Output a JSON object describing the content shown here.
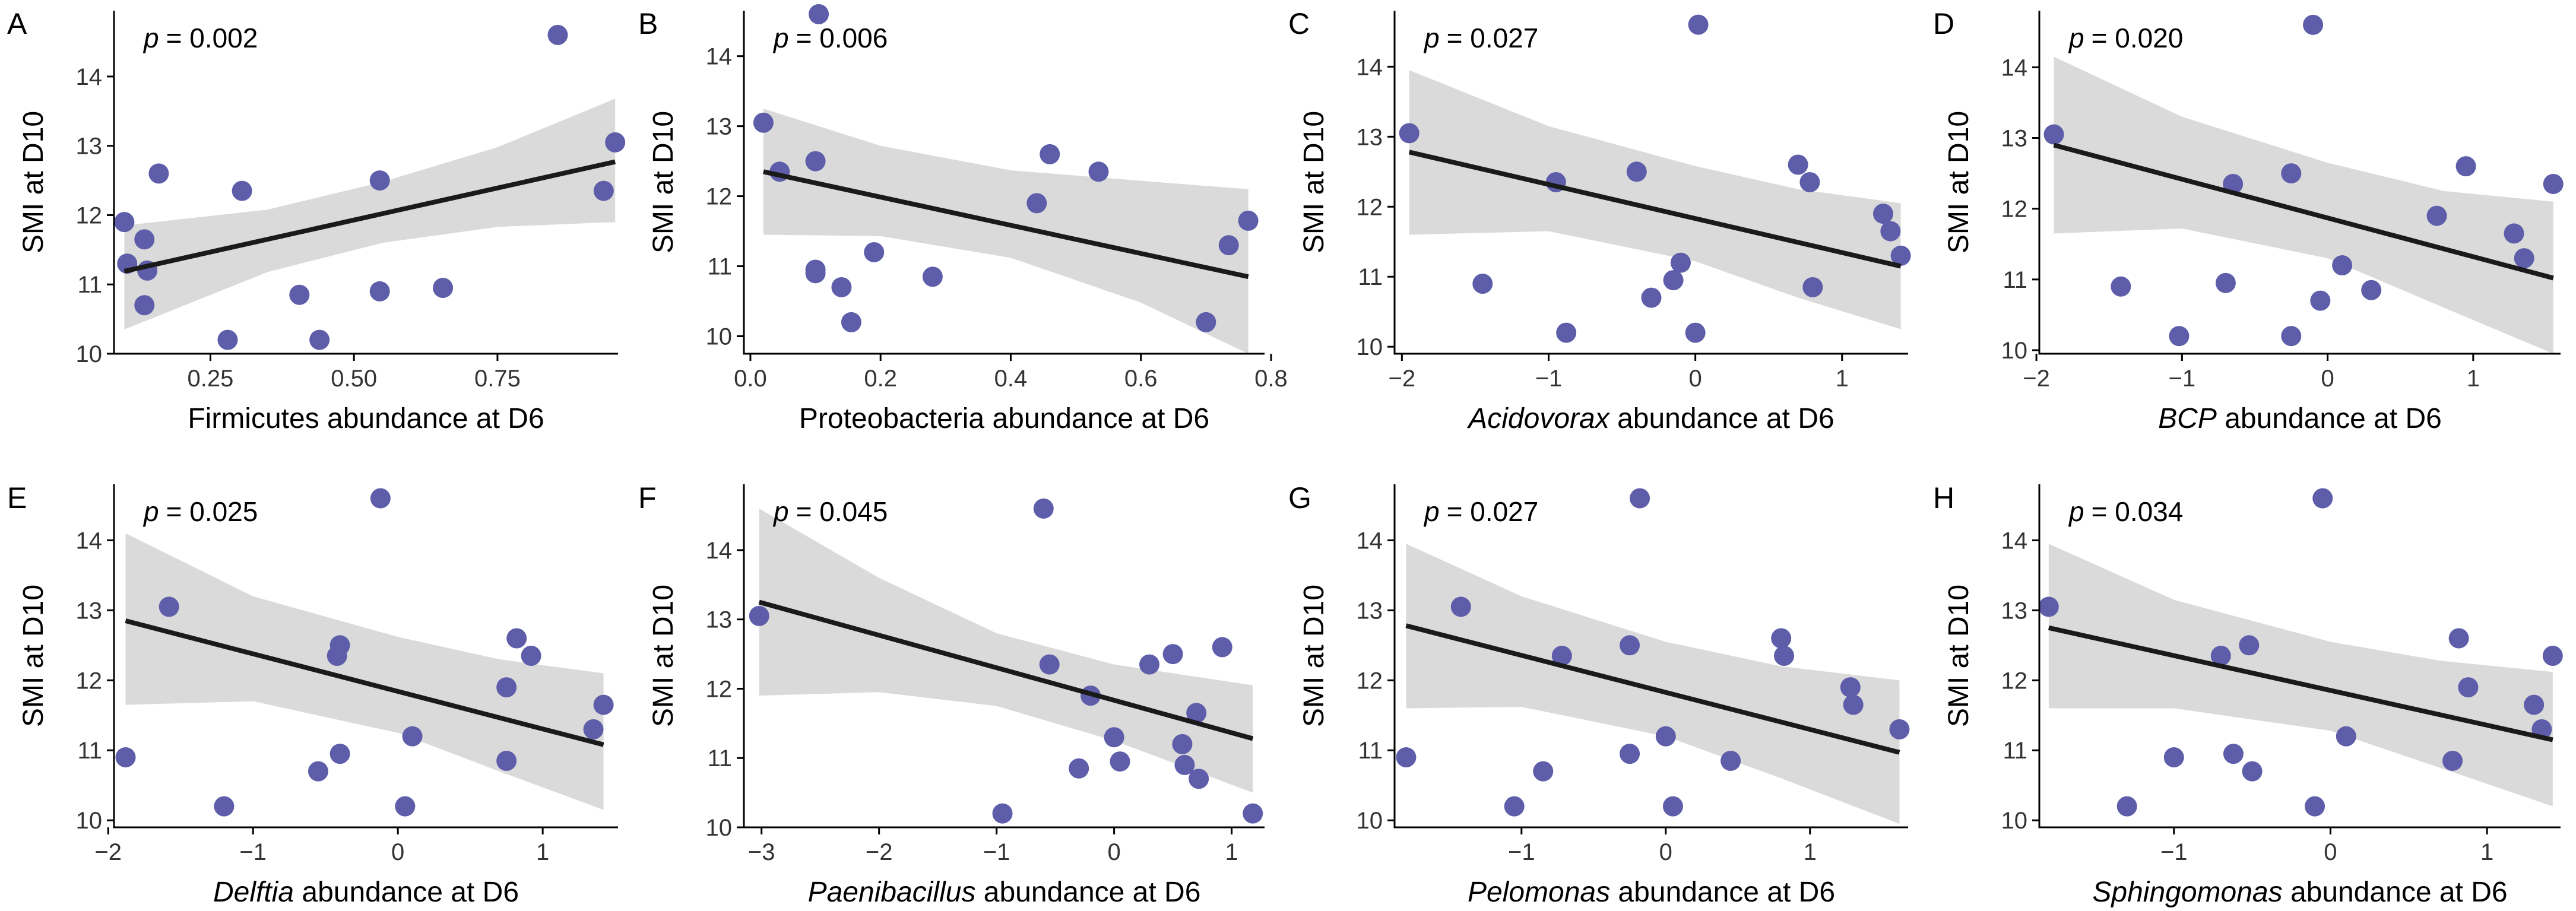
{
  "figure": {
    "y_axis_label": "SMI at D10",
    "colors": {
      "point": "#5D5DAA",
      "band": "#DADADA",
      "line": "#1A1A1A",
      "axis": "#000000",
      "text": "#000000",
      "tick_text": "#333333"
    }
  },
  "chart_data": [
    {
      "id": "A",
      "letter": "A",
      "type": "scatter",
      "p_label": "p",
      "p_value": "= 0.002",
      "xlabel_italic": "",
      "xlabel_rest": "Firmicutes abundance at D6",
      "xlim": [
        0.082,
        0.96
      ],
      "ylim": [
        10.0,
        14.95
      ],
      "xticks": [
        0.25,
        0.5,
        0.75
      ],
      "xtick_labels": [
        "0.25",
        "0.50",
        "0.75"
      ],
      "yticks": [
        10,
        11,
        12,
        13,
        14
      ],
      "ytick_labels": [
        "10",
        "11",
        "12",
        "13",
        "14"
      ],
      "points": [
        [
          0.1,
          11.9
        ],
        [
          0.105,
          11.3
        ],
        [
          0.135,
          11.65
        ],
        [
          0.14,
          11.2
        ],
        [
          0.135,
          10.7
        ],
        [
          0.16,
          12.6
        ],
        [
          0.28,
          10.2
        ],
        [
          0.305,
          12.35
        ],
        [
          0.405,
          10.85
        ],
        [
          0.44,
          10.2
        ],
        [
          0.545,
          12.5
        ],
        [
          0.545,
          10.9
        ],
        [
          0.655,
          10.95
        ],
        [
          0.855,
          14.6
        ],
        [
          0.935,
          12.35
        ],
        [
          0.955,
          13.05
        ]
      ],
      "fit": {
        "x": [
          0.1,
          0.955
        ],
        "y": [
          11.19,
          12.77
        ]
      },
      "band": {
        "upper": [
          [
            0.1,
            11.85
          ],
          [
            0.35,
            12.08
          ],
          [
            0.55,
            12.48
          ],
          [
            0.75,
            12.98
          ],
          [
            0.955,
            13.68
          ]
        ],
        "lower": [
          [
            0.1,
            10.35
          ],
          [
            0.35,
            11.18
          ],
          [
            0.55,
            11.6
          ],
          [
            0.75,
            11.83
          ],
          [
            0.955,
            11.9
          ]
        ]
      }
    },
    {
      "id": "B",
      "letter": "B",
      "type": "scatter",
      "p_label": "p",
      "p_value": "= 0.006",
      "xlabel_italic": "",
      "xlabel_rest": "Proteobacteria abundance at D6",
      "xlim": [
        -0.01,
        0.79
      ],
      "ylim": [
        9.75,
        14.65
      ],
      "xticks": [
        0.0,
        0.2,
        0.4,
        0.6,
        0.8
      ],
      "xtick_labels": [
        "0.0",
        "0.2",
        "0.4",
        "0.6",
        "0.8"
      ],
      "yticks": [
        10,
        11,
        12,
        13,
        14
      ],
      "ytick_labels": [
        "10",
        "11",
        "12",
        "13",
        "14"
      ],
      "points": [
        [
          0.02,
          13.05
        ],
        [
          0.045,
          12.35
        ],
        [
          0.1,
          12.5
        ],
        [
          0.1,
          10.95
        ],
        [
          0.1,
          10.9
        ],
        [
          0.105,
          14.6
        ],
        [
          0.14,
          10.7
        ],
        [
          0.155,
          10.2
        ],
        [
          0.19,
          11.2
        ],
        [
          0.28,
          10.85
        ],
        [
          0.44,
          11.9
        ],
        [
          0.46,
          12.6
        ],
        [
          0.535,
          12.35
        ],
        [
          0.7,
          10.2
        ],
        [
          0.735,
          11.3
        ],
        [
          0.765,
          11.65
        ]
      ],
      "fit": {
        "x": [
          0.02,
          0.765
        ],
        "y": [
          12.35,
          10.85
        ]
      },
      "band": {
        "upper": [
          [
            0.02,
            13.25
          ],
          [
            0.2,
            12.72
          ],
          [
            0.4,
            12.37
          ],
          [
            0.6,
            12.22
          ],
          [
            0.765,
            12.1
          ]
        ],
        "lower": [
          [
            0.02,
            11.45
          ],
          [
            0.2,
            11.43
          ],
          [
            0.4,
            11.12
          ],
          [
            0.6,
            10.48
          ],
          [
            0.765,
            9.75
          ]
        ]
      }
    },
    {
      "id": "C",
      "letter": "C",
      "type": "scatter",
      "p_label": "p",
      "p_value": "= 0.027",
      "xlabel_italic": "Acidovorax",
      "xlabel_rest": " abundance at D6",
      "xlim": [
        -2.05,
        1.45
      ],
      "ylim": [
        9.9,
        14.8
      ],
      "xticks": [
        -2,
        -1,
        0,
        1
      ],
      "xtick_labels": [
        "−2",
        "−1",
        "0",
        "1"
      ],
      "yticks": [
        10,
        11,
        12,
        13,
        14
      ],
      "ytick_labels": [
        "10",
        "11",
        "12",
        "13",
        "14"
      ],
      "points": [
        [
          -1.95,
          13.05
        ],
        [
          -1.45,
          10.9
        ],
        [
          -0.95,
          12.35
        ],
        [
          -0.88,
          10.2
        ],
        [
          -0.4,
          12.5
        ],
        [
          -0.3,
          10.7
        ],
        [
          -0.15,
          10.95
        ],
        [
          -0.1,
          11.2
        ],
        [
          0.0,
          10.2
        ],
        [
          0.02,
          14.6
        ],
        [
          0.7,
          12.6
        ],
        [
          0.78,
          12.35
        ],
        [
          0.8,
          10.85
        ],
        [
          1.28,
          11.9
        ],
        [
          1.33,
          11.65
        ],
        [
          1.4,
          11.3
        ]
      ],
      "fit": {
        "x": [
          -1.95,
          1.4
        ],
        "y": [
          12.78,
          11.15
        ]
      },
      "band": {
        "upper": [
          [
            -1.95,
            13.95
          ],
          [
            -1.0,
            13.15
          ],
          [
            0.0,
            12.58
          ],
          [
            0.7,
            12.25
          ],
          [
            1.4,
            12.05
          ]
        ],
        "lower": [
          [
            -1.95,
            11.6
          ],
          [
            -1.0,
            11.65
          ],
          [
            0.0,
            11.22
          ],
          [
            0.7,
            10.7
          ],
          [
            1.4,
            10.25
          ]
        ]
      }
    },
    {
      "id": "D",
      "letter": "D",
      "type": "scatter",
      "p_label": "p",
      "p_value": "= 0.020",
      "xlabel_italic": "BCP",
      "xlabel_rest": " abundance at D6",
      "xlim": [
        -1.98,
        1.6
      ],
      "ylim": [
        9.95,
        14.8
      ],
      "xticks": [
        -2,
        -1,
        0,
        1
      ],
      "xtick_labels": [
        "−2",
        "−1",
        "0",
        "1"
      ],
      "yticks": [
        10,
        11,
        12,
        13,
        14
      ],
      "ytick_labels": [
        "10",
        "11",
        "12",
        "13",
        "14"
      ],
      "points": [
        [
          -1.88,
          13.05
        ],
        [
          -1.42,
          10.9
        ],
        [
          -1.02,
          10.2
        ],
        [
          -0.7,
          10.95
        ],
        [
          -0.65,
          12.35
        ],
        [
          -0.25,
          12.5
        ],
        [
          -0.25,
          10.2
        ],
        [
          -0.1,
          14.6
        ],
        [
          -0.05,
          10.7
        ],
        [
          0.1,
          11.2
        ],
        [
          0.3,
          10.85
        ],
        [
          0.75,
          11.9
        ],
        [
          0.95,
          12.6
        ],
        [
          1.28,
          11.65
        ],
        [
          1.35,
          11.3
        ],
        [
          1.55,
          12.35
        ]
      ],
      "fit": {
        "x": [
          -1.88,
          1.55
        ],
        "y": [
          12.9,
          11.02
        ]
      },
      "band": {
        "upper": [
          [
            -1.88,
            14.15
          ],
          [
            -1.0,
            13.3
          ],
          [
            0.0,
            12.65
          ],
          [
            0.8,
            12.25
          ],
          [
            1.55,
            12.1
          ]
        ],
        "lower": [
          [
            -1.88,
            11.65
          ],
          [
            -1.0,
            11.72
          ],
          [
            0.0,
            11.3
          ],
          [
            0.8,
            10.6
          ],
          [
            1.55,
            9.95
          ]
        ]
      }
    },
    {
      "id": "E",
      "letter": "E",
      "type": "scatter",
      "p_label": "p",
      "p_value": "= 0.025",
      "xlabel_italic": "Delftia",
      "xlabel_rest": " abundance at D6",
      "xlim": [
        -1.96,
        1.52
      ],
      "ylim": [
        9.9,
        14.8
      ],
      "xticks": [
        -2,
        -1,
        0,
        1
      ],
      "xtick_labels": [
        "−2",
        "−1",
        "0",
        "1"
      ],
      "yticks": [
        10,
        11,
        12,
        13,
        14
      ],
      "ytick_labels": [
        "10",
        "11",
        "12",
        "13",
        "14"
      ],
      "points": [
        [
          -1.88,
          10.9
        ],
        [
          -1.58,
          13.05
        ],
        [
          -1.2,
          10.2
        ],
        [
          -0.55,
          10.7
        ],
        [
          -0.42,
          12.35
        ],
        [
          -0.4,
          12.5
        ],
        [
          -0.4,
          10.95
        ],
        [
          -0.12,
          14.6
        ],
        [
          0.05,
          10.2
        ],
        [
          0.1,
          11.2
        ],
        [
          0.75,
          11.9
        ],
        [
          0.75,
          10.85
        ],
        [
          0.82,
          12.6
        ],
        [
          0.92,
          12.35
        ],
        [
          1.35,
          11.3
        ],
        [
          1.42,
          11.65
        ]
      ],
      "fit": {
        "x": [
          -1.88,
          1.42
        ],
        "y": [
          12.85,
          11.08
        ]
      },
      "band": {
        "upper": [
          [
            -1.88,
            14.1
          ],
          [
            -1.0,
            13.2
          ],
          [
            0.0,
            12.62
          ],
          [
            0.7,
            12.3
          ],
          [
            1.42,
            12.1
          ]
        ],
        "lower": [
          [
            -1.88,
            11.65
          ],
          [
            -1.0,
            11.7
          ],
          [
            0.0,
            11.25
          ],
          [
            0.7,
            10.7
          ],
          [
            1.42,
            10.15
          ]
        ]
      }
    },
    {
      "id": "F",
      "letter": "F",
      "type": "scatter",
      "p_label": "p",
      "p_value": "= 0.045",
      "xlabel_italic": "Paenibacillus",
      "xlabel_rest": " abundance at D6",
      "xlim": [
        -3.15,
        1.28
      ],
      "ylim": [
        10.0,
        14.95
      ],
      "xticks": [
        -3,
        -2,
        -1,
        0,
        1
      ],
      "xtick_labels": [
        "−3",
        "−2",
        "−1",
        "0",
        "1"
      ],
      "yticks": [
        10,
        11,
        12,
        13,
        14
      ],
      "ytick_labels": [
        "10",
        "11",
        "12",
        "13",
        "14"
      ],
      "points": [
        [
          -3.02,
          13.05
        ],
        [
          -0.95,
          10.2
        ],
        [
          -0.6,
          14.6
        ],
        [
          -0.55,
          12.35
        ],
        [
          -0.3,
          10.85
        ],
        [
          -0.2,
          11.9
        ],
        [
          0.0,
          11.3
        ],
        [
          0.05,
          10.95
        ],
        [
          0.3,
          12.35
        ],
        [
          0.5,
          12.5
        ],
        [
          0.58,
          11.2
        ],
        [
          0.6,
          10.9
        ],
        [
          0.7,
          11.65
        ],
        [
          0.72,
          10.7
        ],
        [
          0.92,
          12.6
        ],
        [
          1.18,
          10.2
        ]
      ],
      "fit": {
        "x": [
          -3.02,
          1.18
        ],
        "y": [
          13.25,
          11.28
        ]
      },
      "band": {
        "upper": [
          [
            -3.02,
            14.6
          ],
          [
            -2.0,
            13.6
          ],
          [
            -1.0,
            12.8
          ],
          [
            0.0,
            12.35
          ],
          [
            1.18,
            12.05
          ]
        ],
        "lower": [
          [
            -3.02,
            11.9
          ],
          [
            -2.0,
            11.95
          ],
          [
            -1.0,
            11.75
          ],
          [
            0.0,
            11.25
          ],
          [
            1.18,
            10.5
          ]
        ]
      }
    },
    {
      "id": "G",
      "letter": "G",
      "type": "scatter",
      "p_label": "p",
      "p_value": "= 0.027",
      "xlabel_italic": "Pelomonas",
      "xlabel_rest": " abundance at D6",
      "xlim": [
        -1.88,
        1.68
      ],
      "ylim": [
        9.9,
        14.8
      ],
      "xticks": [
        -1,
        0,
        1
      ],
      "xtick_labels": [
        "−1",
        "0",
        "1"
      ],
      "yticks": [
        10,
        11,
        12,
        13,
        14
      ],
      "ytick_labels": [
        "10",
        "11",
        "12",
        "13",
        "14"
      ],
      "points": [
        [
          -1.8,
          10.9
        ],
        [
          -1.42,
          13.05
        ],
        [
          -1.05,
          10.2
        ],
        [
          -0.85,
          10.7
        ],
        [
          -0.72,
          12.35
        ],
        [
          -0.25,
          12.5
        ],
        [
          -0.25,
          10.95
        ],
        [
          -0.18,
          14.6
        ],
        [
          0.0,
          11.2
        ],
        [
          0.05,
          10.2
        ],
        [
          0.45,
          10.85
        ],
        [
          0.8,
          12.6
        ],
        [
          0.82,
          12.35
        ],
        [
          1.28,
          11.9
        ],
        [
          1.3,
          11.65
        ],
        [
          1.62,
          11.3
        ]
      ],
      "fit": {
        "x": [
          -1.8,
          1.62
        ],
        "y": [
          12.78,
          10.97
        ]
      },
      "band": {
        "upper": [
          [
            -1.8,
            13.95
          ],
          [
            -1.0,
            13.2
          ],
          [
            0.0,
            12.55
          ],
          [
            0.8,
            12.2
          ],
          [
            1.62,
            12.0
          ]
        ],
        "lower": [
          [
            -1.8,
            11.6
          ],
          [
            -1.0,
            11.62
          ],
          [
            0.0,
            11.2
          ],
          [
            0.8,
            10.6
          ],
          [
            1.62,
            9.95
          ]
        ]
      }
    },
    {
      "id": "H",
      "letter": "H",
      "type": "scatter",
      "p_label": "p",
      "p_value": "= 0.034",
      "xlabel_italic": "Sphingomonas",
      "xlabel_rest": " abundance at D6",
      "xlim": [
        -1.86,
        1.47
      ],
      "ylim": [
        9.9,
        14.8
      ],
      "xticks": [
        -1,
        0,
        1
      ],
      "xtick_labels": [
        "−1",
        "0",
        "1"
      ],
      "yticks": [
        10,
        11,
        12,
        13,
        14
      ],
      "ytick_labels": [
        "10",
        "11",
        "12",
        "13",
        "14"
      ],
      "points": [
        [
          -1.8,
          13.05
        ],
        [
          -1.3,
          10.2
        ],
        [
          -1.0,
          10.9
        ],
        [
          -0.7,
          12.35
        ],
        [
          -0.62,
          10.95
        ],
        [
          -0.52,
          12.5
        ],
        [
          -0.5,
          10.7
        ],
        [
          -0.1,
          10.2
        ],
        [
          -0.05,
          14.6
        ],
        [
          0.1,
          11.2
        ],
        [
          0.78,
          10.85
        ],
        [
          0.82,
          12.6
        ],
        [
          0.88,
          11.9
        ],
        [
          1.3,
          11.65
        ],
        [
          1.35,
          11.3
        ],
        [
          1.42,
          12.35
        ]
      ],
      "fit": {
        "x": [
          -1.8,
          1.42
        ],
        "y": [
          12.75,
          11.15
        ]
      },
      "band": {
        "upper": [
          [
            -1.8,
            13.95
          ],
          [
            -1.0,
            13.15
          ],
          [
            0.0,
            12.55
          ],
          [
            0.7,
            12.28
          ],
          [
            1.42,
            12.12
          ]
        ],
        "lower": [
          [
            -1.8,
            11.6
          ],
          [
            -1.0,
            11.6
          ],
          [
            0.0,
            11.28
          ],
          [
            0.7,
            10.75
          ],
          [
            1.42,
            10.2
          ]
        ]
      }
    }
  ]
}
